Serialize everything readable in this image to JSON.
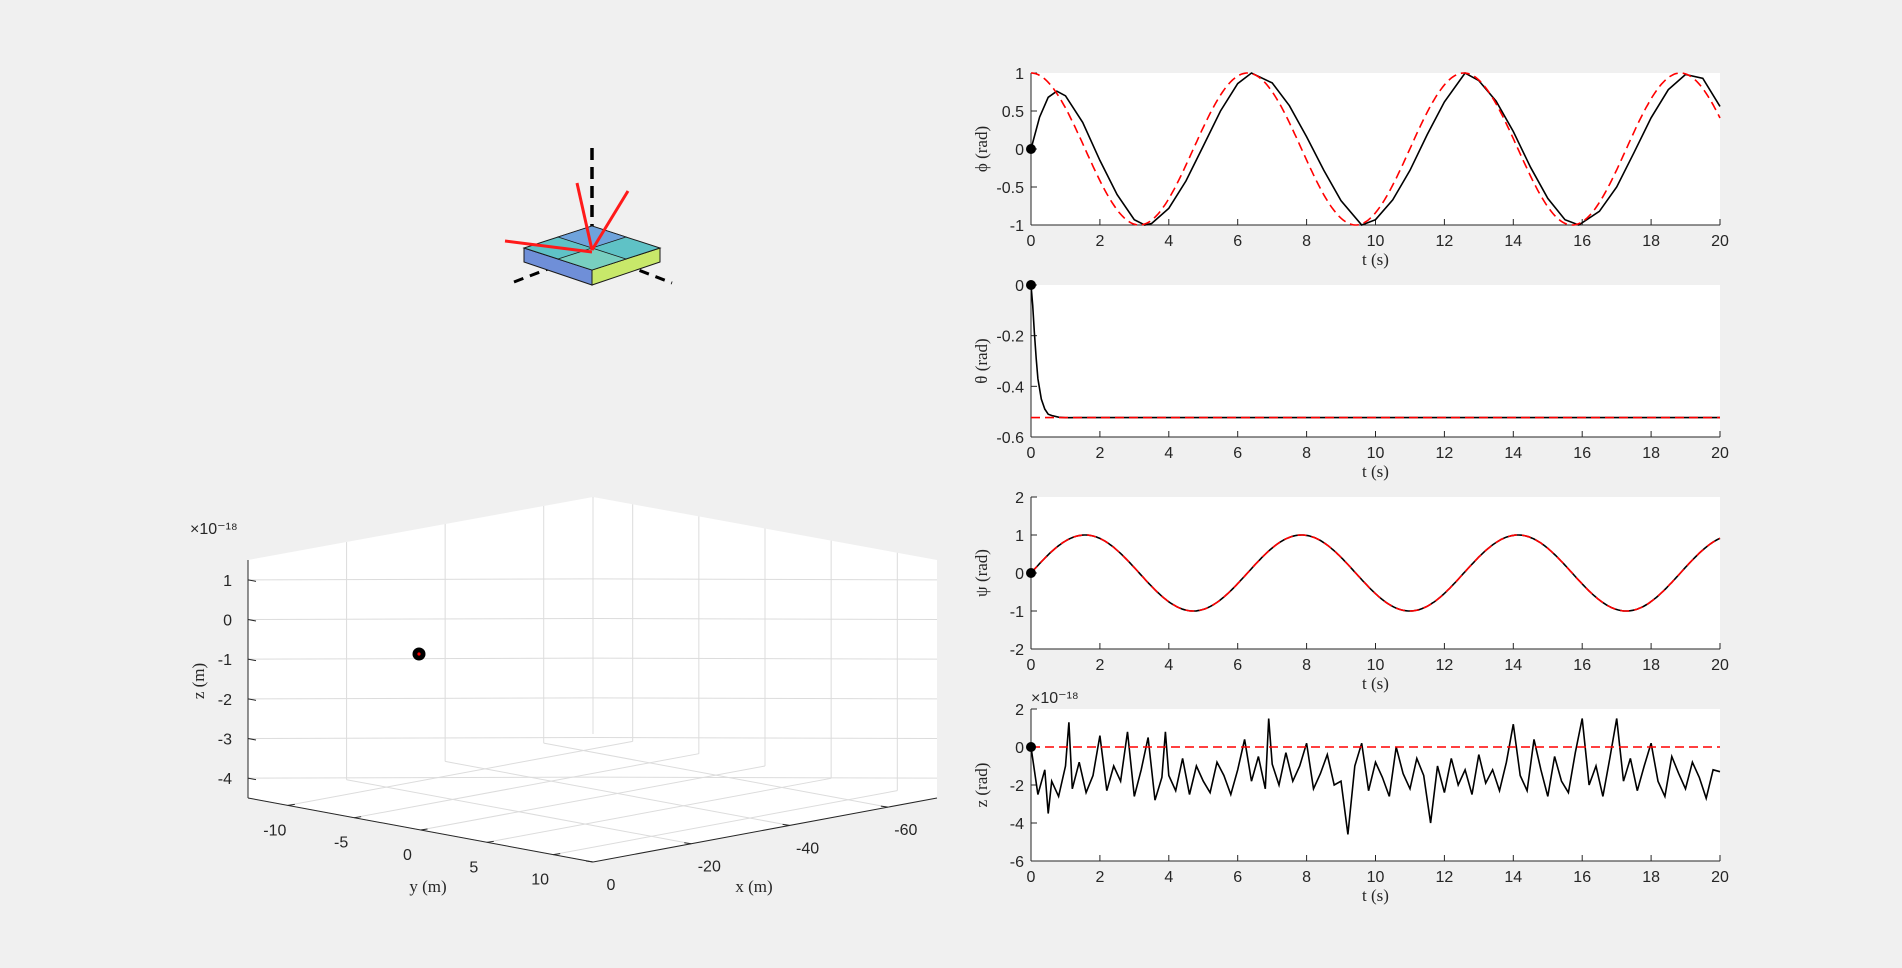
{
  "figure": {
    "background": "#f0f0f0"
  },
  "colors": {
    "actual": "#000000",
    "reference": "#ff0000",
    "axis": "#262626",
    "grid": "#dcdcdc"
  },
  "chart_data": [
    {
      "id": "phi",
      "type": "line",
      "xlabel": "t (s)",
      "ylabel": "ϕ (rad)",
      "xlim": [
        0,
        20
      ],
      "ylim": [
        -1,
        1
      ],
      "xticks": [
        "0",
        "2",
        "4",
        "6",
        "8",
        "10",
        "12",
        "14",
        "16",
        "18",
        "20"
      ],
      "yticks": [
        "1",
        "0.5",
        "0",
        "-0.5",
        "-1"
      ],
      "series": [
        {
          "style": "solid black",
          "x": [
            0,
            0.25,
            0.5,
            0.75,
            1.0,
            1.5,
            2.0,
            2.5,
            3.0,
            3.3,
            3.5,
            4.0,
            4.5,
            5.0,
            5.5,
            6.0,
            6.4,
            7.0,
            7.5,
            8.0,
            8.5,
            9.0,
            9.6,
            10.0,
            10.5,
            11.0,
            11.5,
            12.0,
            12.6,
            13.0,
            13.5,
            14.0,
            14.5,
            15.0,
            15.5,
            15.9,
            16.5,
            17.0,
            17.5,
            18.0,
            18.5,
            19.0,
            19.5,
            20.0
          ],
          "y": [
            0,
            0.42,
            0.68,
            0.76,
            0.7,
            0.35,
            -0.15,
            -0.6,
            -0.93,
            -1.0,
            -0.98,
            -0.78,
            -0.42,
            0.04,
            0.5,
            0.86,
            1.0,
            0.87,
            0.57,
            0.16,
            -0.28,
            -0.68,
            -1.0,
            -0.93,
            -0.67,
            -0.28,
            0.19,
            0.62,
            1.0,
            0.9,
            0.63,
            0.23,
            -0.24,
            -0.65,
            -0.93,
            -1.0,
            -0.82,
            -0.5,
            -0.05,
            0.41,
            0.78,
            0.98,
            0.93,
            0.56
          ]
        },
        {
          "style": "dashed red",
          "function": "cos",
          "amplitude": 1,
          "omega": 1
        }
      ],
      "initial_marker": {
        "x": 0,
        "y": 0
      }
    },
    {
      "id": "theta",
      "type": "line",
      "xlabel": "t (s)",
      "ylabel": "θ (rad)",
      "xlim": [
        0,
        20
      ],
      "ylim": [
        -0.6,
        0
      ],
      "xticks": [
        "0",
        "2",
        "4",
        "6",
        "8",
        "10",
        "12",
        "14",
        "16",
        "18",
        "20"
      ],
      "yticks": [
        "0",
        "-0.2",
        "-0.4",
        "-0.6"
      ],
      "series": [
        {
          "style": "solid black",
          "x": [
            0,
            0.05,
            0.1,
            0.15,
            0.2,
            0.3,
            0.4,
            0.5,
            0.6,
            0.8,
            1.0,
            1.5,
            2.0,
            20.0
          ],
          "y": [
            0,
            -0.08,
            -0.19,
            -0.29,
            -0.37,
            -0.45,
            -0.49,
            -0.51,
            -0.515,
            -0.522,
            -0.524,
            -0.5236,
            -0.5236,
            -0.5236
          ]
        },
        {
          "style": "dashed red",
          "x": [
            0,
            20
          ],
          "y": [
            -0.5236,
            -0.5236
          ]
        }
      ],
      "initial_marker": {
        "x": 0,
        "y": 0
      }
    },
    {
      "id": "psi",
      "type": "line",
      "xlabel": "t (s)",
      "ylabel": "ψ (rad)",
      "xlim": [
        0,
        20
      ],
      "ylim": [
        -2,
        2
      ],
      "xticks": [
        "0",
        "2",
        "4",
        "6",
        "8",
        "10",
        "12",
        "14",
        "16",
        "18",
        "20"
      ],
      "yticks": [
        "2",
        "1",
        "0",
        "-1",
        "-2"
      ],
      "series": [
        {
          "style": "solid black",
          "function": "sin",
          "amplitude": 1,
          "omega": 1
        },
        {
          "style": "dashed red",
          "function": "sin",
          "amplitude": 1,
          "omega": 1
        }
      ],
      "initial_marker": {
        "x": 0,
        "y": 0
      }
    },
    {
      "id": "z",
      "type": "line",
      "xlabel": "t (s)",
      "ylabel": "z (rad)",
      "exponent_label": "×10⁻¹⁸",
      "xlim": [
        0,
        20
      ],
      "ylim": [
        -6,
        2
      ],
      "xticks": [
        "0",
        "2",
        "4",
        "6",
        "8",
        "10",
        "12",
        "14",
        "16",
        "18",
        "20"
      ],
      "yticks": [
        "2",
        "0",
        "-2",
        "-4",
        "-6"
      ],
      "series": [
        {
          "style": "solid black",
          "x": [
            0,
            0.2,
            0.4,
            0.5,
            0.6,
            0.8,
            1.0,
            1.1,
            1.2,
            1.4,
            1.6,
            1.8,
            2.0,
            2.2,
            2.4,
            2.6,
            2.8,
            3.0,
            3.2,
            3.4,
            3.6,
            3.8,
            3.9,
            4.0,
            4.2,
            4.4,
            4.6,
            4.8,
            5.0,
            5.2,
            5.4,
            5.6,
            5.8,
            6.0,
            6.2,
            6.4,
            6.6,
            6.8,
            6.9,
            7.0,
            7.2,
            7.4,
            7.6,
            7.8,
            8.0,
            8.2,
            8.4,
            8.6,
            8.8,
            9.0,
            9.2,
            9.4,
            9.6,
            9.8,
            10.0,
            10.2,
            10.4,
            10.6,
            10.8,
            11.0,
            11.2,
            11.4,
            11.6,
            11.8,
            12.0,
            12.2,
            12.4,
            12.6,
            12.8,
            13.0,
            13.2,
            13.4,
            13.6,
            13.8,
            14.0,
            14.2,
            14.4,
            14.6,
            14.8,
            15.0,
            15.2,
            15.4,
            15.6,
            15.8,
            16.0,
            16.2,
            16.4,
            16.6,
            16.8,
            17.0,
            17.2,
            17.4,
            17.6,
            17.8,
            18.0,
            18.2,
            18.4,
            18.6,
            18.8,
            19.0,
            19.2,
            19.4,
            19.6,
            19.8,
            20.0
          ],
          "y": [
            0,
            -2.5,
            -1.2,
            -3.5,
            -1.8,
            -2.6,
            -1.0,
            1.3,
            -2.2,
            -0.8,
            -2.4,
            -1.5,
            0.6,
            -2.3,
            -1.0,
            -1.8,
            0.8,
            -2.6,
            -1.2,
            0.5,
            -2.8,
            -1.6,
            0.8,
            -1.5,
            -2.3,
            -0.6,
            -2.5,
            -1.0,
            -1.8,
            -2.4,
            -0.8,
            -1.5,
            -2.5,
            -1.2,
            0.4,
            -1.8,
            -0.5,
            -2.2,
            1.5,
            -0.9,
            -2.0,
            -0.3,
            -1.8,
            -1.0,
            0.2,
            -2.2,
            -1.4,
            -0.4,
            -2.0,
            -1.8,
            -4.6,
            -1.0,
            0.2,
            -2.3,
            -0.8,
            -1.6,
            -2.6,
            0.0,
            -1.4,
            -2.2,
            -0.6,
            -1.5,
            -4.0,
            -1.0,
            -2.4,
            -0.6,
            -2.0,
            -1.2,
            -2.5,
            -0.4,
            -1.9,
            -1.2,
            -2.3,
            -0.8,
            1.2,
            -1.5,
            -2.3,
            0.4,
            -1.2,
            -2.6,
            -0.5,
            -1.8,
            -2.4,
            -0.3,
            1.5,
            -2.0,
            -1.0,
            -2.6,
            -0.6,
            1.5,
            -1.8,
            -0.6,
            -2.3,
            -1.0,
            0.2,
            -1.8,
            -2.6,
            -0.5,
            -1.4,
            -2.2,
            -0.8,
            -1.6,
            -2.7,
            -1.2,
            -1.3
          ]
        },
        {
          "style": "dashed red",
          "x": [
            0,
            20
          ],
          "y": [
            0,
            0
          ]
        }
      ],
      "initial_marker": {
        "x": 0,
        "y": 0
      }
    },
    {
      "id": "trajectory-3d",
      "type": "scatter",
      "xlabel": "x (m)",
      "ylabel": "y (m)",
      "zlabel": "z (m)",
      "exponent_label": "×10⁻¹⁸",
      "xticks": [
        "0",
        "-20",
        "-40",
        "-60"
      ],
      "yticks": [
        "-10",
        "-5",
        "0",
        "5",
        "10"
      ],
      "zticks": [
        "1",
        "0",
        "-1",
        "-2",
        "-3",
        "-4"
      ],
      "points": [
        {
          "x": 0,
          "y": 0,
          "z": -0.9
        }
      ]
    }
  ]
}
